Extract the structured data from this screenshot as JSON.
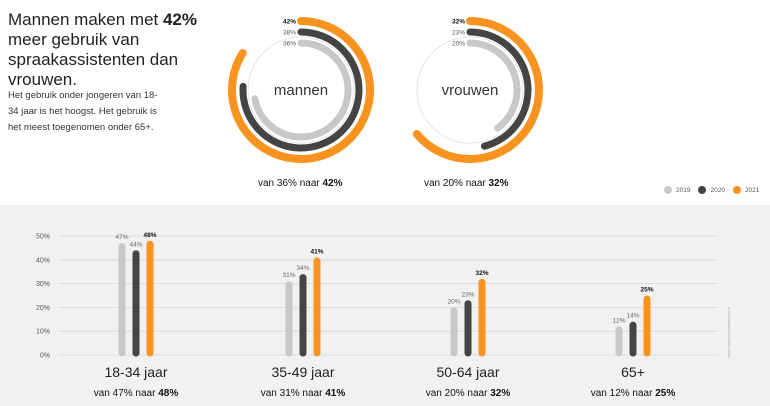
{
  "headline": {
    "pre": "Mannen maken met ",
    "strong": "42%",
    "post": " meer gebruik van spraakassistenten dan vrouwen."
  },
  "body_text": "Het gebruik onder jongeren van 18-34 jaar is het hoogst. Het gebruik is het meest toegenomen onder 65+.",
  "legend": [
    {
      "label": "2019",
      "color": "#c8c8c8"
    },
    {
      "label": "2020",
      "color": "#444444"
    },
    {
      "label": "2021",
      "color": "#f7931e"
    }
  ],
  "watermark": "www.nationaalsocialmedia.nl",
  "chart_data": [
    {
      "type": "radial-bar",
      "groups": [
        {
          "name": "mannen",
          "values": [
            36,
            38,
            42
          ],
          "labels": [
            "36%",
            "38%",
            "42%"
          ],
          "caption": {
            "pre": "van 36% naar ",
            "strong": "42%"
          }
        },
        {
          "name": "vrouwen",
          "values": [
            20,
            23,
            32
          ],
          "labels": [
            "20%",
            "23%",
            "32%"
          ],
          "caption": {
            "pre": "van 20% naar ",
            "strong": "32%"
          }
        }
      ],
      "series": [
        "2019",
        "2020",
        "2021"
      ]
    },
    {
      "type": "bar",
      "categories": [
        "18-34 jaar",
        "35-49 jaar",
        "50-64 jaar",
        "65+"
      ],
      "series": [
        {
          "name": "2019",
          "values": [
            47,
            31,
            20,
            12
          ]
        },
        {
          "name": "2020",
          "values": [
            44,
            34,
            23,
            14
          ]
        },
        {
          "name": "2021",
          "values": [
            48,
            41,
            32,
            25
          ]
        }
      ],
      "data_labels": [
        [
          "47%",
          "44%",
          "48%"
        ],
        [
          "31%",
          "34%",
          "41%"
        ],
        [
          "20%",
          "23%",
          "32%"
        ],
        [
          "12%",
          "14%",
          "25%"
        ]
      ],
      "captions": [
        {
          "pre": "van 47% naar ",
          "strong": "48%"
        },
        {
          "pre": "van 31% naar ",
          "strong": "41%"
        },
        {
          "pre": "van 20% naar ",
          "strong": "32%"
        },
        {
          "pre": "van 12% naar ",
          "strong": "25%"
        }
      ],
      "ytick_labels": [
        "0%",
        "10%",
        "20%",
        "30%",
        "40%",
        "50%"
      ],
      "ylim": [
        0,
        50
      ],
      "grid": true
    }
  ]
}
